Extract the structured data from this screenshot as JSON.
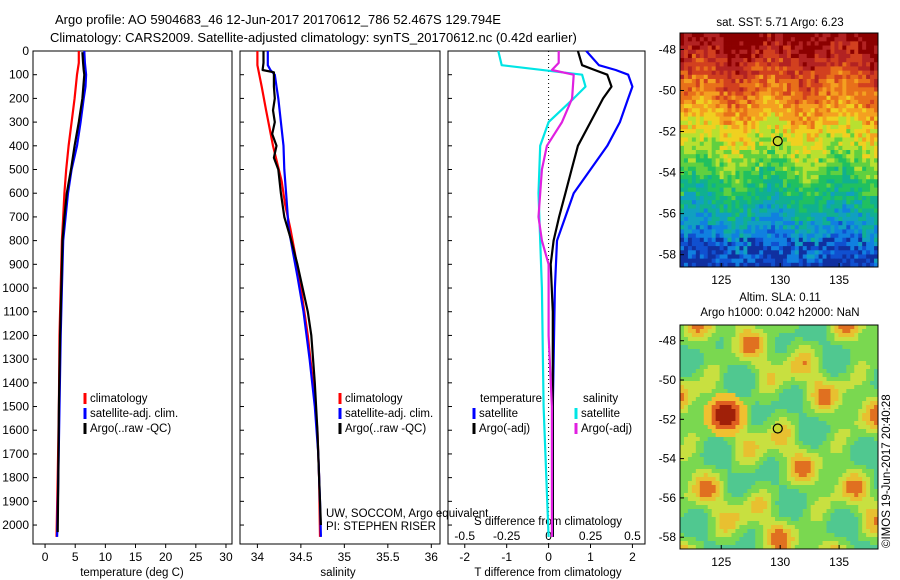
{
  "header": {
    "line1": "Argo profile: AO 5904683_46 12-Jun-2017 20170612_786 52.467S 129.794E",
    "line2": "Climatology: CARS2009. Satellite-adjusted climatology: synTS_20170612.nc (0.42d earlier)"
  },
  "footer": {
    "credit1": "UW, SOCCOM, Argo equivalent",
    "credit2": "PI: STEPHEN RISER",
    "stamp": "©IMOS 19-Jun-2017 20:40:28"
  },
  "colors": {
    "climatology": "#ff0000",
    "satellite": "#0000ff",
    "argo": "#000000",
    "sal_satellite": "#00e5e5",
    "sal_argo": "#e020e0"
  },
  "maps": {
    "sst": {
      "title": "sat. SST: 5.71  Argo: 6.23"
    },
    "sla": {
      "title_line1": "Altim. SLA: 0.11",
      "title_line2": "Argo h1000: 0.042 h2000: NaN"
    },
    "lat_ticks": [
      "-48",
      "-50",
      "-52",
      "-54",
      "-56",
      "-58"
    ],
    "lon_ticks": [
      "125",
      "130",
      "135"
    ],
    "float_lon": 129.794,
    "float_lat": -52.467
  },
  "chart_data": [
    {
      "type": "line",
      "panel": "temperature",
      "xlabel": "temperature (deg C)",
      "ylabel": "",
      "xlim": [
        -2,
        31
      ],
      "ylim": [
        2080,
        0
      ],
      "x_ticks": [
        "0",
        "5",
        "10",
        "15",
        "20",
        "25",
        "30"
      ],
      "y_ticks": [
        "0",
        "100",
        "200",
        "300",
        "400",
        "500",
        "600",
        "700",
        "800",
        "900",
        "1000",
        "1100",
        "1200",
        "1300",
        "1400",
        "1500",
        "1600",
        "1700",
        "1800",
        "1900",
        "2000"
      ],
      "legend": [
        "climatology",
        "satellite-adj. clim.",
        "Argo(..raw -QC)"
      ],
      "series": [
        {
          "name": "climatology",
          "points": [
            [
              5.6,
              0
            ],
            [
              5.6,
              50
            ],
            [
              5.3,
              100
            ],
            [
              4.9,
              200
            ],
            [
              4.4,
              300
            ],
            [
              3.9,
              400
            ],
            [
              3.5,
              500
            ],
            [
              3.2,
              600
            ],
            [
              3.0,
              700
            ],
            [
              2.8,
              800
            ],
            [
              2.6,
              1000
            ],
            [
              2.4,
              1200
            ],
            [
              2.3,
              1500
            ],
            [
              2.1,
              1800
            ],
            [
              1.9,
              2050
            ]
          ]
        },
        {
          "name": "satellite-adj. clim.",
          "points": [
            [
              6.5,
              0
            ],
            [
              6.6,
              50
            ],
            [
              6.8,
              100
            ],
            [
              6.7,
              150
            ],
            [
              6.4,
              200
            ],
            [
              5.9,
              300
            ],
            [
              5.3,
              400
            ],
            [
              4.4,
              500
            ],
            [
              3.8,
              600
            ],
            [
              3.4,
              700
            ],
            [
              3.0,
              800
            ],
            [
              2.8,
              1000
            ],
            [
              2.6,
              1200
            ],
            [
              2.4,
              1500
            ],
            [
              2.2,
              1800
            ],
            [
              2.0,
              2050
            ]
          ]
        },
        {
          "name": "Argo(..raw -QC)",
          "points": [
            [
              6.2,
              5
            ],
            [
              6.3,
              50
            ],
            [
              6.4,
              80
            ],
            [
              6.5,
              100
            ],
            [
              6.2,
              200
            ],
            [
              5.6,
              300
            ],
            [
              4.9,
              400
            ],
            [
              4.3,
              500
            ],
            [
              3.6,
              600
            ],
            [
              3.2,
              700
            ],
            [
              2.9,
              800
            ],
            [
              2.7,
              1000
            ],
            [
              2.5,
              1200
            ],
            [
              2.3,
              1500
            ],
            [
              2.2,
              1800
            ],
            [
              2.1,
              2030
            ]
          ]
        }
      ]
    },
    {
      "type": "line",
      "panel": "salinity",
      "xlabel": "salinity",
      "ylabel": "",
      "xlim": [
        33.8,
        36.1
      ],
      "ylim": [
        2080,
        0
      ],
      "x_ticks": [
        "34",
        "34.5",
        "35",
        "35.5",
        "36"
      ],
      "legend": [
        "climatology",
        "satellite-adj. clim.",
        "Argo(..raw -QC)"
      ],
      "series": [
        {
          "name": "climatology",
          "points": [
            [
              34.0,
              0
            ],
            [
              34.0,
              60
            ],
            [
              34.05,
              150
            ],
            [
              34.1,
              250
            ],
            [
              34.18,
              400
            ],
            [
              34.28,
              550
            ],
            [
              34.32,
              650
            ],
            [
              34.38,
              750
            ],
            [
              34.43,
              850
            ],
            [
              34.5,
              1000
            ],
            [
              34.58,
              1200
            ],
            [
              34.64,
              1400
            ],
            [
              34.69,
              1600
            ],
            [
              34.71,
              1800
            ],
            [
              34.72,
              2050
            ]
          ]
        },
        {
          "name": "satellite-adj. clim.",
          "points": [
            [
              34.12,
              0
            ],
            [
              34.12,
              60
            ],
            [
              34.15,
              80
            ],
            [
              34.2,
              100
            ],
            [
              34.22,
              150
            ],
            [
              34.24,
              200
            ],
            [
              34.27,
              300
            ],
            [
              34.3,
              400
            ],
            [
              34.31,
              500
            ],
            [
              34.33,
              600
            ],
            [
              34.36,
              750
            ],
            [
              34.41,
              850
            ],
            [
              34.46,
              950
            ],
            [
              34.53,
              1100
            ],
            [
              34.6,
              1300
            ],
            [
              34.66,
              1500
            ],
            [
              34.7,
              1700
            ],
            [
              34.72,
              1900
            ],
            [
              34.73,
              2050
            ]
          ]
        },
        {
          "name": "Argo(..raw -QC)",
          "points": [
            [
              34.07,
              0
            ],
            [
              34.07,
              50
            ],
            [
              34.06,
              80
            ],
            [
              34.19,
              90
            ],
            [
              34.19,
              150
            ],
            [
              34.2,
              200
            ],
            [
              34.18,
              250
            ],
            [
              34.2,
              300
            ],
            [
              34.17,
              350
            ],
            [
              34.22,
              400
            ],
            [
              34.19,
              450
            ],
            [
              34.24,
              500
            ],
            [
              34.27,
              600
            ],
            [
              34.31,
              700
            ],
            [
              34.39,
              800
            ],
            [
              34.46,
              900
            ],
            [
              34.52,
              1000
            ],
            [
              34.58,
              1100
            ],
            [
              34.62,
              1200
            ],
            [
              34.66,
              1400
            ],
            [
              34.69,
              1600
            ],
            [
              34.71,
              1800
            ],
            [
              34.73,
              2000
            ]
          ]
        }
      ]
    },
    {
      "type": "line",
      "panel": "difference",
      "xlabel": "T difference from climatology",
      "xlabel2": "S difference from climatology",
      "ylabel": "",
      "xlim": [
        -2.4,
        2.3
      ],
      "ylim": [
        2080,
        0
      ],
      "x_ticks": [
        "-2",
        "-1",
        "0",
        "1",
        "2"
      ],
      "s_ticks": [
        "-0.5",
        "-0.25",
        "0",
        "0.25",
        "0.5"
      ],
      "legend_group1": "temperature",
      "legend_group2": "salinity",
      "legend": [
        "satellite",
        "Argo(-adj)",
        "satellite",
        "Argo(-adj)"
      ],
      "series": [
        {
          "name": "satellite",
          "group": "temperature",
          "points": [
            [
              0.9,
              0
            ],
            [
              1.2,
              60
            ],
            [
              1.6,
              80
            ],
            [
              1.9,
              100
            ],
            [
              2.0,
              150
            ],
            [
              1.9,
              200
            ],
            [
              1.7,
              300
            ],
            [
              1.4,
              400
            ],
            [
              1.0,
              500
            ],
            [
              0.6,
              600
            ],
            [
              0.4,
              700
            ],
            [
              0.2,
              800
            ],
            [
              0.15,
              1000
            ],
            [
              0.1,
              1500
            ],
            [
              0.1,
              2050
            ]
          ]
        },
        {
          "name": "Argo(-adj)",
          "group": "temperature",
          "points": [
            [
              0.7,
              0
            ],
            [
              0.8,
              60
            ],
            [
              1.1,
              80
            ],
            [
              1.4,
              100
            ],
            [
              1.5,
              150
            ],
            [
              1.3,
              200
            ],
            [
              1.0,
              300
            ],
            [
              0.7,
              400
            ],
            [
              0.55,
              500
            ],
            [
              0.4,
              600
            ],
            [
              0.25,
              700
            ],
            [
              0.12,
              800
            ],
            [
              0.05,
              900
            ],
            [
              0.1,
              1100
            ],
            [
              0.1,
              1500
            ],
            [
              0.1,
              2050
            ]
          ]
        },
        {
          "name": "satellite",
          "group": "salinity",
          "points": [
            [
              -0.3,
              0
            ],
            [
              -0.28,
              60
            ],
            [
              0.2,
              100
            ],
            [
              0.22,
              150
            ],
            [
              0.15,
              200
            ],
            [
              0.0,
              300
            ],
            [
              -0.05,
              400
            ],
            [
              -0.06,
              600
            ],
            [
              -0.05,
              800
            ],
            [
              -0.04,
              1000
            ],
            [
              -0.03,
              1500
            ],
            [
              0.0,
              2050
            ]
          ]
        },
        {
          "name": "Argo(-adj)",
          "group": "salinity",
          "points": [
            [
              0.06,
              0
            ],
            [
              0.06,
              50
            ],
            [
              0.02,
              80
            ],
            [
              0.15,
              100
            ],
            [
              0.14,
              200
            ],
            [
              0.08,
              300
            ],
            [
              -0.01,
              400
            ],
            [
              -0.04,
              500
            ],
            [
              -0.05,
              600
            ],
            [
              -0.06,
              700
            ],
            [
              -0.04,
              800
            ],
            [
              0.0,
              900
            ],
            [
              0.0,
              1200
            ],
            [
              0.02,
              1500
            ],
            [
              0.02,
              2050
            ]
          ]
        }
      ]
    }
  ]
}
